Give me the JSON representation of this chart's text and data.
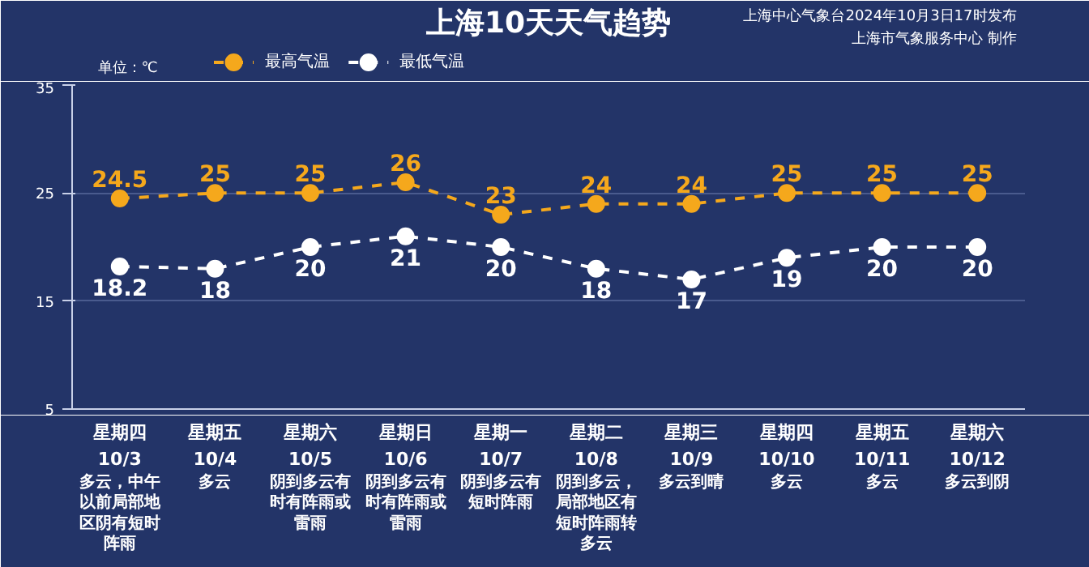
{
  "chart_data": {
    "type": "line",
    "title": "上海10天天气趋势",
    "subtitle": "上海中心气象台2024年10月3日17时发布",
    "ylabel": "单位：℃",
    "categories": [
      "星期四\n10/3",
      "星期五\n10/4",
      "星期六\n10/5",
      "星期日\n10/6",
      "星期一\n10/7",
      "星期二\n10/8",
      "星期三\n10/9",
      "星期四\n10/10",
      "星期五\n10/11",
      "星期六\n10/12"
    ],
    "series": [
      {
        "name": "最高气温",
        "color": "#f5a81c",
        "values": [
          24.5,
          25,
          25,
          26,
          23,
          24,
          24,
          25,
          25,
          25
        ]
      },
      {
        "name": "最低气温",
        "color": "#ffffff",
        "values": [
          18.2,
          18,
          20,
          21,
          20,
          18,
          17,
          19,
          20,
          20
        ]
      }
    ],
    "ylim": [
      5,
      35
    ],
    "yticks": [
      5,
      15,
      25,
      35
    ],
    "grid": "y",
    "legend": "top",
    "marker": "circle",
    "line_style": "dashed",
    "data_labels": true,
    "annotations": [
      "上海市气象服务中心 制作",
      "多云，中午以前局部地区阴有短时阵雨",
      "多云",
      "阴到多云有时有阵雨或雷雨",
      "阴到多云有时有阵雨或雷雨",
      "阴到多云有短时阵雨",
      "阴到多云，局部地区有短时阵雨转多云",
      "多云到晴",
      "多云",
      "多云",
      "多云到阴"
    ]
  }
}
